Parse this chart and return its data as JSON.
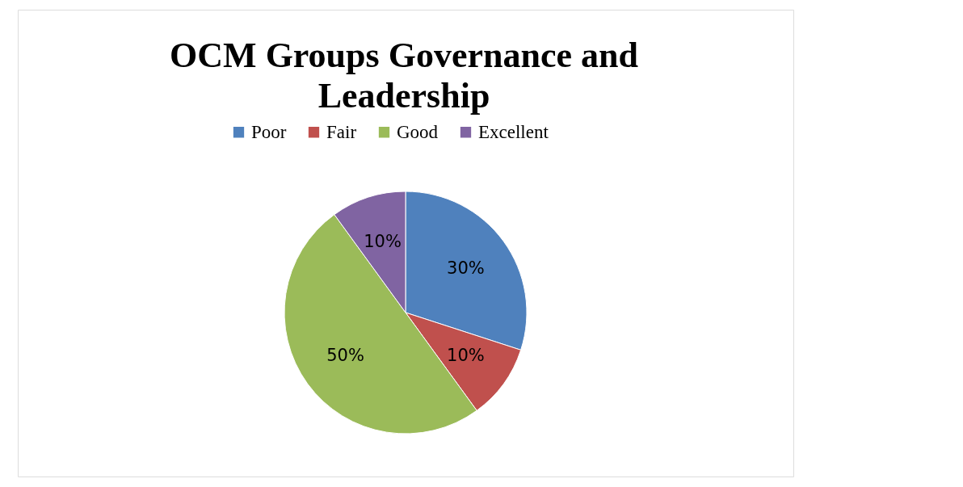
{
  "chart_data": {
    "type": "pie",
    "title": "OCM Groups Governance and Leadership",
    "categories": [
      "Poor",
      "Fair",
      "Good",
      "Excellent"
    ],
    "values": [
      30,
      10,
      50,
      10
    ],
    "colors": [
      "#4f81bd",
      "#c0504d",
      "#9bbb59",
      "#8064a2"
    ],
    "value_labels": [
      "30%",
      "10%",
      "50%",
      "10%"
    ],
    "legend": "top"
  }
}
